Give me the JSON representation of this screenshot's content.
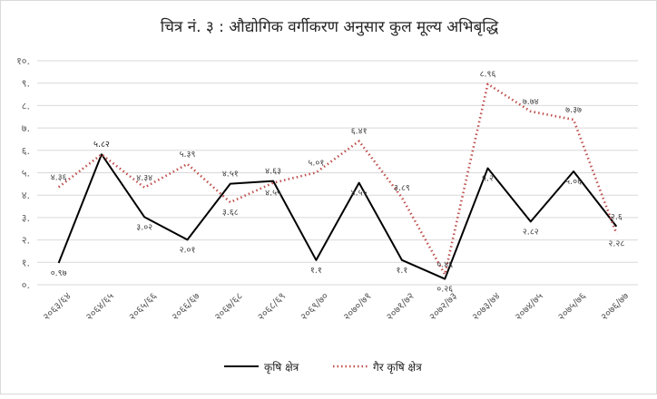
{
  "chart_data": {
    "type": "line",
    "title": "चित्र नं. ३ : औद्योगिक वर्गीकरण अनुसार कुल मूल्य अभिबृद्धि",
    "xlabel": "",
    "ylabel": "",
    "ylim": [
      0,
      10
    ],
    "yticks": [
      0,
      1,
      2,
      3,
      4,
      5,
      6,
      7,
      8,
      9,
      10
    ],
    "ytick_labels": [
      "०.",
      "१.",
      "२.",
      "३.",
      "४.",
      "५.",
      "६.",
      "७.",
      "८.",
      "९.",
      "१०."
    ],
    "grid": true,
    "legend_position": "bottom",
    "categories": [
      "२०६३/६४",
      "२०६४/६५",
      "२०६५/६६",
      "२०६६/६७",
      "२०६७/६८",
      "२०६८/६९",
      "२०६९/७०",
      "२०७०/७१",
      "२०७१/७२",
      "२०७२/७३",
      "२०७३/७४",
      "२०७४/७५",
      "२०७५/७६",
      "२०७६/७७"
    ],
    "series": [
      {
        "name": "कृषि क्षेत्र",
        "color": "#000000",
        "style": "solid",
        "values": [
          0.97,
          5.82,
          3.02,
          2.01,
          4.51,
          4.63,
          1.1,
          4.55,
          1.1,
          0.26,
          5.2,
          2.82,
          5.06,
          2.6
        ],
        "labels": [
          "०.९७",
          "५.८२",
          "३.०२",
          "२.०१",
          "४.५१",
          "४.६३",
          "१.१",
          "४.५५",
          "१.१",
          "०.२६",
          "५.२",
          "२.८२",
          "५.०६",
          "२.६"
        ]
      },
      {
        "name": "गैर कृषि क्षेत्र",
        "color": "#c0504d",
        "style": "dotted",
        "values": [
          4.36,
          5.82,
          4.34,
          5.39,
          3.68,
          4.55,
          5.01,
          6.41,
          3.89,
          0.46,
          8.96,
          7.74,
          7.37,
          2.28
        ],
        "labels": [
          "४.३६",
          "५.८२",
          "४.३४",
          "५.३९",
          "३.६८",
          "४.५५",
          "५.०१",
          "६.४१",
          "३.८९",
          "०.४६",
          "८.९६",
          "७.७४",
          "७.३७",
          "२.२८"
        ]
      }
    ]
  }
}
